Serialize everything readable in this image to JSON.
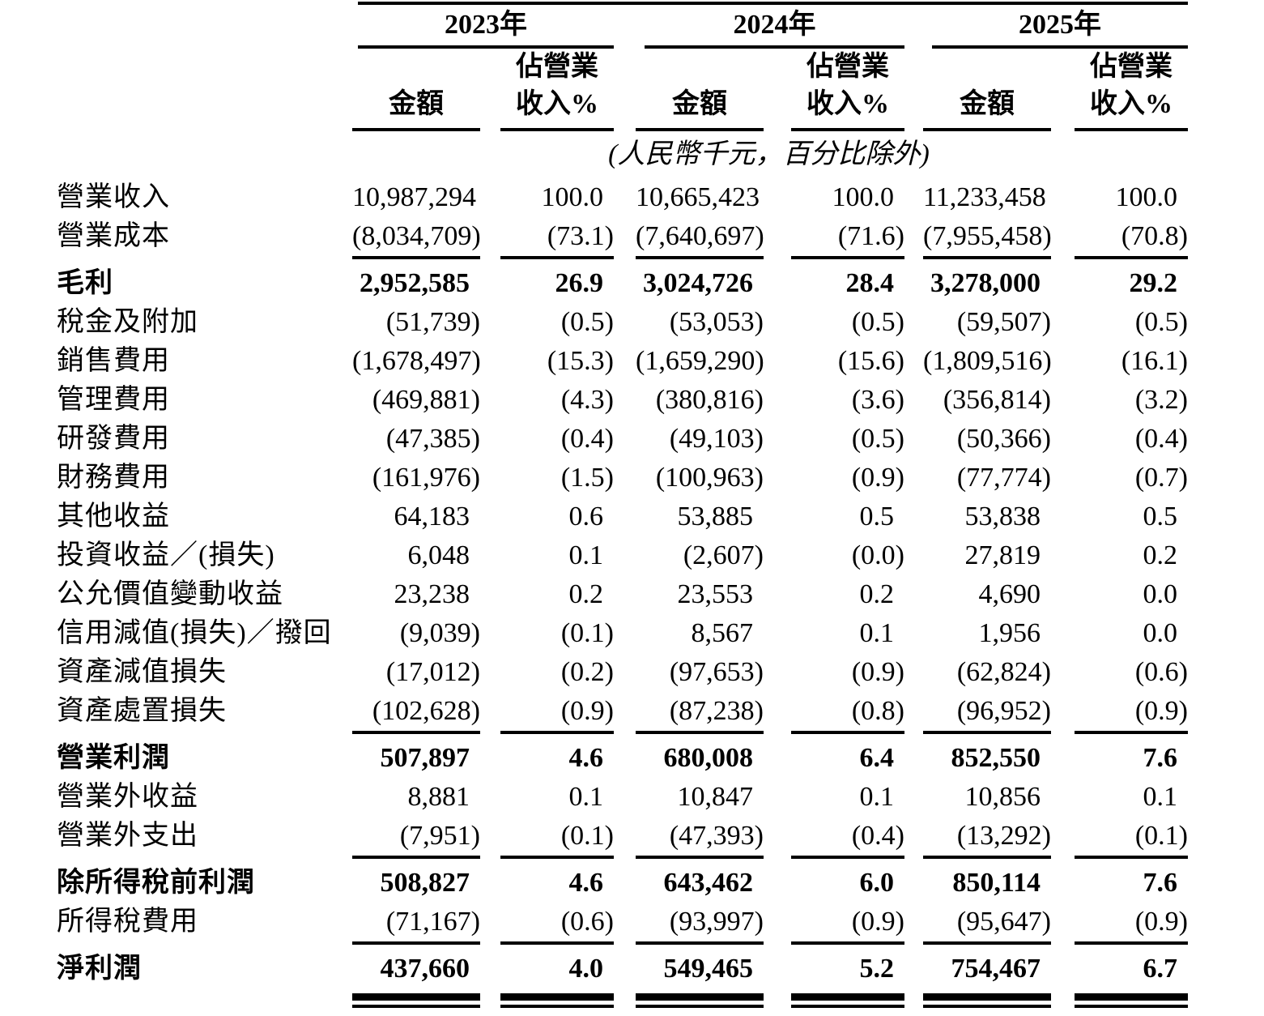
{
  "header": {
    "years": [
      "2023年",
      "2024年",
      "2025年"
    ],
    "amount": "金額",
    "pct1": "佔營業",
    "pct2": "收入%"
  },
  "note": "(人民幣千元，百分比除外)",
  "rows": [
    {
      "label": "營業收入",
      "bold": false,
      "rule": null,
      "vals": [
        "10,987,294",
        "100.0",
        "10,665,423",
        "100.0",
        "11,233,458",
        "100.0"
      ]
    },
    {
      "label": "營業成本",
      "bold": false,
      "rule": "single",
      "vals": [
        "(8,034,709)",
        "(73.1)",
        "(7,640,697)",
        "(71.6)",
        "(7,955,458)",
        "(70.8)"
      ]
    },
    {
      "label": "毛利",
      "bold": true,
      "rule": null,
      "vals": [
        "2,952,585",
        "26.9",
        "3,024,726",
        "28.4",
        "3,278,000",
        "29.2"
      ]
    },
    {
      "label": "稅金及附加",
      "bold": false,
      "rule": null,
      "vals": [
        "(51,739)",
        "(0.5)",
        "(53,053)",
        "(0.5)",
        "(59,507)",
        "(0.5)"
      ]
    },
    {
      "label": "銷售費用",
      "bold": false,
      "rule": null,
      "vals": [
        "(1,678,497)",
        "(15.3)",
        "(1,659,290)",
        "(15.6)",
        "(1,809,516)",
        "(16.1)"
      ]
    },
    {
      "label": "管理費用",
      "bold": false,
      "rule": null,
      "vals": [
        "(469,881)",
        "(4.3)",
        "(380,816)",
        "(3.6)",
        "(356,814)",
        "(3.2)"
      ]
    },
    {
      "label": "研發費用",
      "bold": false,
      "rule": null,
      "vals": [
        "(47,385)",
        "(0.4)",
        "(49,103)",
        "(0.5)",
        "(50,366)",
        "(0.4)"
      ]
    },
    {
      "label": "財務費用",
      "bold": false,
      "rule": null,
      "vals": [
        "(161,976)",
        "(1.5)",
        "(100,963)",
        "(0.9)",
        "(77,774)",
        "(0.7)"
      ]
    },
    {
      "label": "其他收益",
      "bold": false,
      "rule": null,
      "vals": [
        "64,183",
        "0.6",
        "53,885",
        "0.5",
        "53,838",
        "0.5"
      ]
    },
    {
      "label": "投資收益／(損失)",
      "bold": false,
      "rule": null,
      "vals": [
        "6,048",
        "0.1",
        "(2,607)",
        "(0.0)",
        "27,819",
        "0.2"
      ]
    },
    {
      "label": "公允價值變動收益",
      "bold": false,
      "rule": null,
      "vals": [
        "23,238",
        "0.2",
        "23,553",
        "0.2",
        "4,690",
        "0.0"
      ]
    },
    {
      "label": "信用減值(損失)／撥回",
      "bold": false,
      "rule": null,
      "vals": [
        "(9,039)",
        "(0.1)",
        "8,567",
        "0.1",
        "1,956",
        "0.0"
      ]
    },
    {
      "label": "資產減值損失",
      "bold": false,
      "rule": null,
      "vals": [
        "(17,012)",
        "(0.2)",
        "(97,653)",
        "(0.9)",
        "(62,824)",
        "(0.6)"
      ]
    },
    {
      "label": "資產處置損失",
      "bold": false,
      "rule": "single",
      "vals": [
        "(102,628)",
        "(0.9)",
        "(87,238)",
        "(0.8)",
        "(96,952)",
        "(0.9)"
      ]
    },
    {
      "label": "營業利潤",
      "bold": true,
      "rule": null,
      "vals": [
        "507,897",
        "4.6",
        "680,008",
        "6.4",
        "852,550",
        "7.6"
      ]
    },
    {
      "label": "營業外收益",
      "bold": false,
      "rule": null,
      "vals": [
        "8,881",
        "0.1",
        "10,847",
        "0.1",
        "10,856",
        "0.1"
      ]
    },
    {
      "label": "營業外支出",
      "bold": false,
      "rule": "single",
      "vals": [
        "(7,951)",
        "(0.1)",
        "(47,393)",
        "(0.4)",
        "(13,292)",
        "(0.1)"
      ]
    },
    {
      "label": "除所得稅前利潤",
      "bold": true,
      "rule": null,
      "vals": [
        "508,827",
        "4.6",
        "643,462",
        "6.0",
        "850,114",
        "7.6"
      ]
    },
    {
      "label": "所得稅費用",
      "bold": false,
      "rule": "single",
      "vals": [
        "(71,167)",
        "(0.6)",
        "(93,997)",
        "(0.9)",
        "(95,647)",
        "(0.9)"
      ]
    },
    {
      "label": "淨利潤",
      "bold": true,
      "rule": "double",
      "vals": [
        "437,660",
        "4.0",
        "549,465",
        "5.2",
        "754,467",
        "6.7"
      ]
    }
  ]
}
